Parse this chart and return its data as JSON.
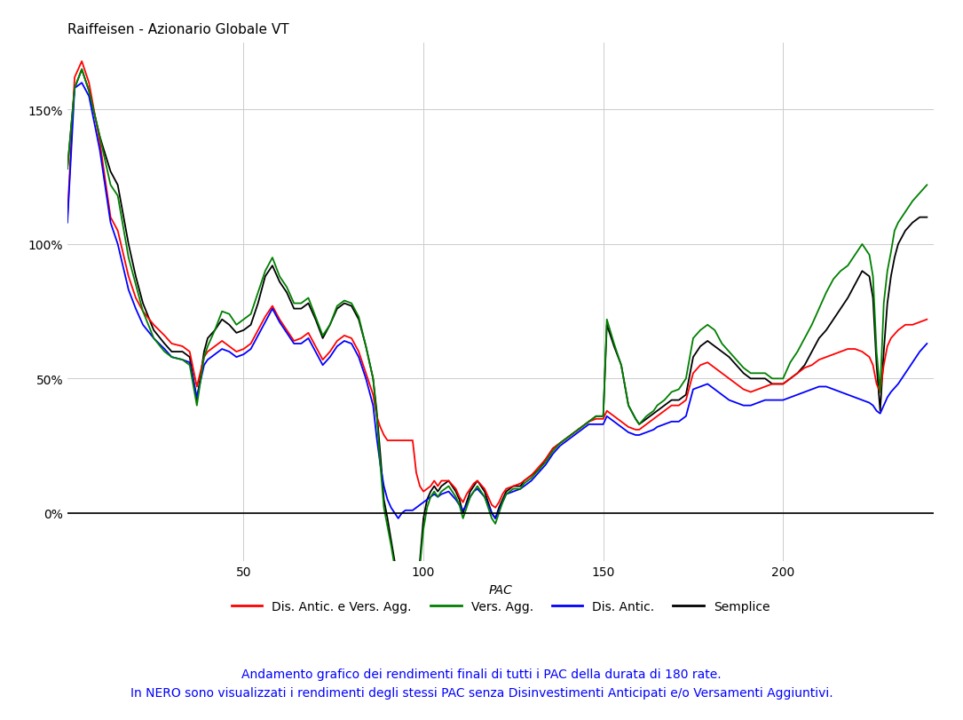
{
  "title": "Raiffeisen - Azionario Globale VT",
  "xlabel": "PAC",
  "ylabel": "",
  "xlim": [
    1,
    242
  ],
  "ylim": [
    -0.18,
    1.75
  ],
  "yticks": [
    0.0,
    0.5,
    1.0,
    1.5
  ],
  "ytick_labels": [
    "0%",
    "50%",
    "100%",
    "150%"
  ],
  "xticks": [
    50,
    100,
    150,
    200
  ],
  "grid": true,
  "background_color": "#ffffff",
  "legend_labels": [
    "Dis. Antic. e Vers. Agg.",
    "Vers. Agg.",
    "Dis. Antic.",
    "Semplice"
  ],
  "legend_colors": [
    "#ff0000",
    "#008000",
    "#0000ff",
    "#000000"
  ],
  "line_width": 1.3,
  "footer_line1": "Andamento grafico dei rendimenti finali di tutti i PAC della durata di 180 rate.",
  "footer_line2": "In NERO sono visualizzati i rendimenti degli stessi PAC senza Disinvestimenti Anticipati e/o Versamenti Aggiuntivi.",
  "footer_color": "#0000ff",
  "title_fontsize": 11,
  "axis_label_fontsize": 10,
  "tick_fontsize": 10,
  "legend_fontsize": 10,
  "footer_fontsize": 10
}
